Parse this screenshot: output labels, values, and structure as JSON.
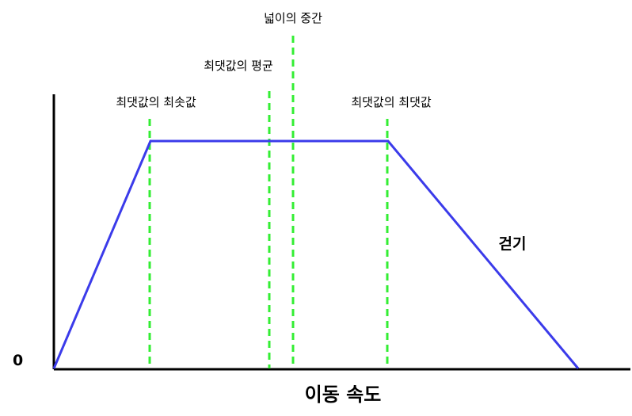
{
  "labels": {
    "zero": "0",
    "x_axis": "이동 속도",
    "walk": "걷기",
    "max_min": "최댓값의 최솟값",
    "max_mean": "최댓값의 평균",
    "area_mid": "넓이의 중간",
    "max_max": "최댓값의 최댓값"
  },
  "colors": {
    "curve": "#3b3bea",
    "guides": "#33ee33",
    "axes": "#000000"
  }
}
